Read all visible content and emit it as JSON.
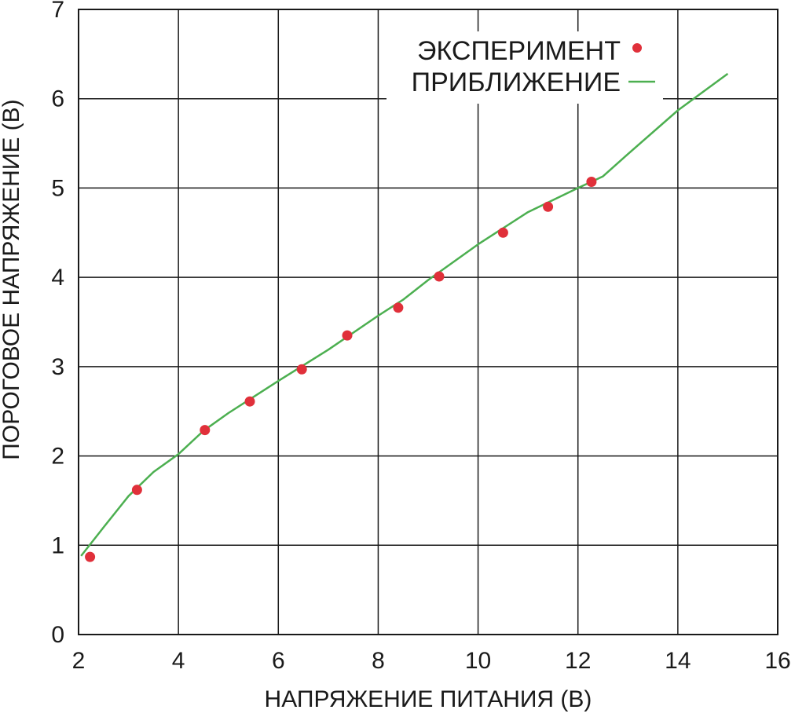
{
  "chart_data": {
    "type": "scatter",
    "xlabel": "НАПРЯЖЕНИЕ ПИТАНИЯ (В)",
    "ylabel": "ПОРОГОВОЕ НАПРЯЖЕНИЕ (В)",
    "xlim": [
      2,
      16
    ],
    "ylim": [
      0,
      7
    ],
    "x_ticks": [
      2,
      4,
      6,
      8,
      10,
      12,
      14,
      16
    ],
    "y_ticks": [
      0,
      1,
      2,
      3,
      4,
      5,
      6,
      7
    ],
    "grid": true,
    "legend_position": "top-right",
    "series": [
      {
        "name": "ЭКСПЕРИМЕНТ",
        "kind": "points",
        "color": "#e0303a",
        "x": [
          2.23,
          3.17,
          4.53,
          5.43,
          6.47,
          7.38,
          8.4,
          9.22,
          10.5,
          11.4,
          12.27
        ],
        "y": [
          0.87,
          1.62,
          2.29,
          2.61,
          2.97,
          3.35,
          3.66,
          4.01,
          4.5,
          4.79,
          5.07
        ]
      },
      {
        "name": "ПРИБЛИЖЕНИЕ",
        "kind": "line",
        "color": "#4caf50",
        "x": [
          2.05,
          2.5,
          3.0,
          3.5,
          4.0,
          4.5,
          5.0,
          6.0,
          7.0,
          8.0,
          8.5,
          9.0,
          10.0,
          11.0,
          12.0,
          12.5,
          13.0,
          14.0,
          15.0
        ],
        "y": [
          0.88,
          1.2,
          1.55,
          1.82,
          2.02,
          2.28,
          2.48,
          2.84,
          3.19,
          3.57,
          3.75,
          3.97,
          4.37,
          4.73,
          5.0,
          5.13,
          5.38,
          5.87,
          6.28
        ]
      }
    ]
  }
}
